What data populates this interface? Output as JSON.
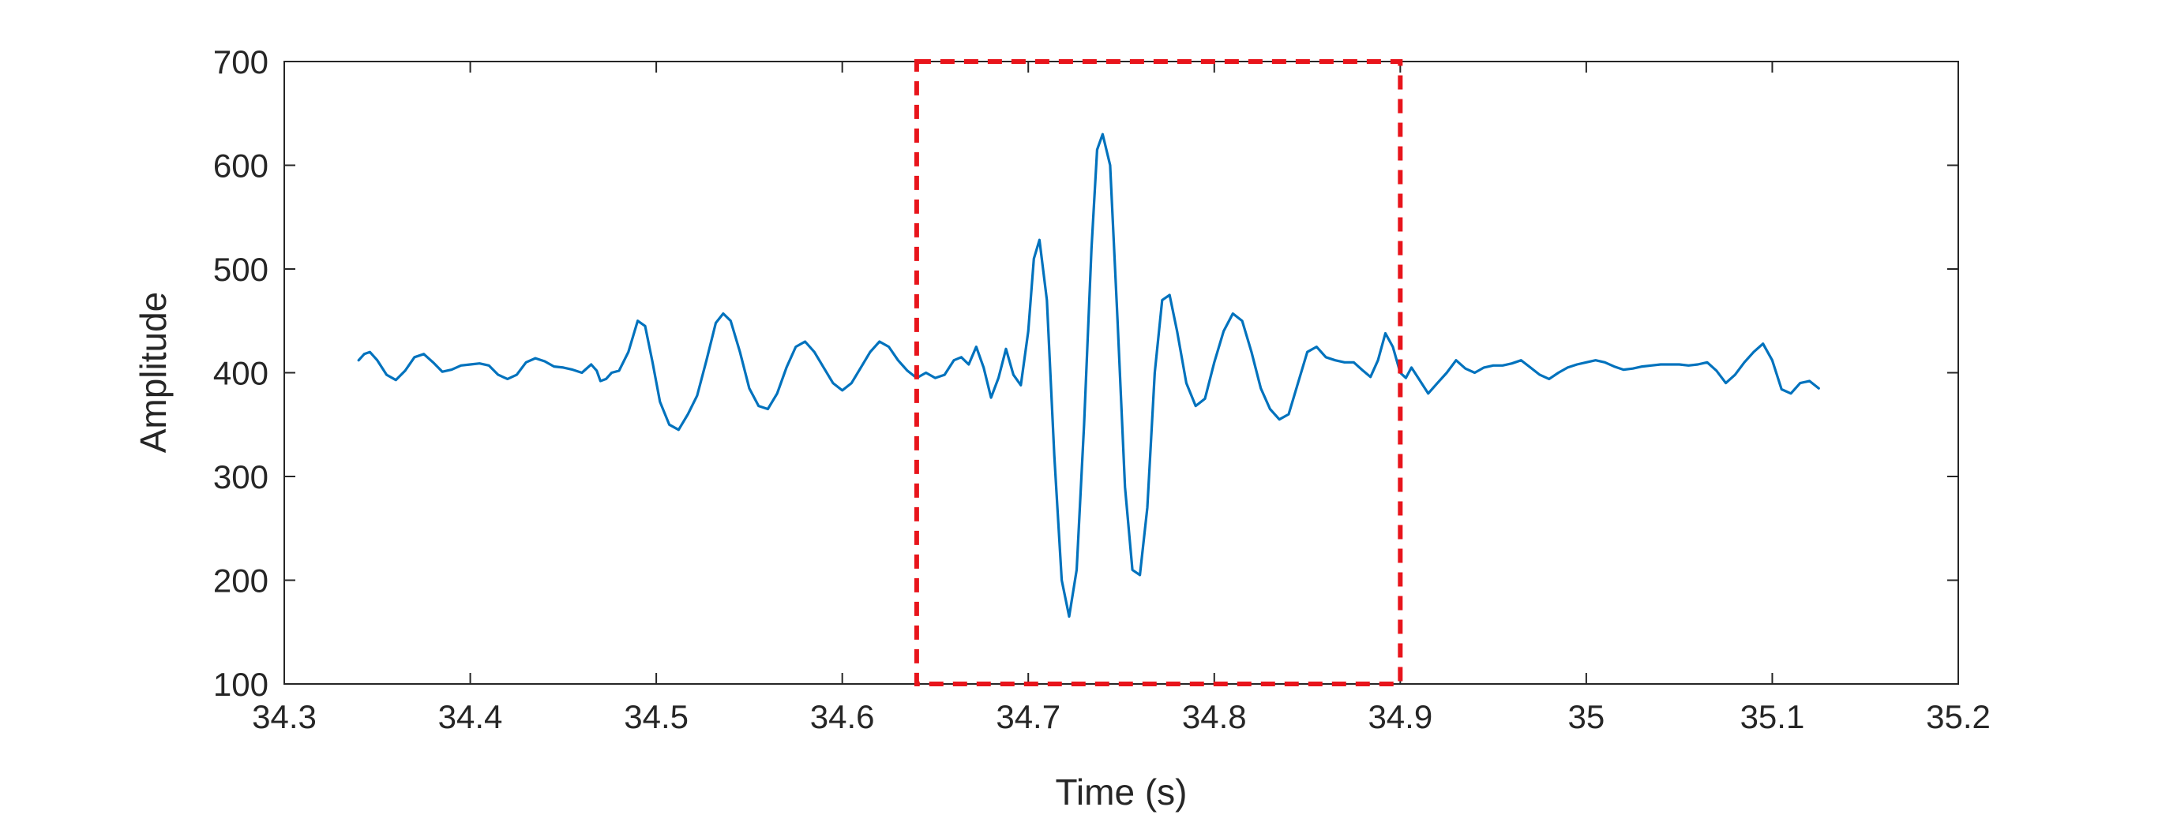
{
  "chart_data": {
    "type": "line",
    "title": "",
    "xlabel": "Time (s)",
    "ylabel": "Amplitude",
    "xlim": [
      34.3,
      35.2
    ],
    "ylim": [
      100,
      700
    ],
    "xticks": [
      34.3,
      34.4,
      34.5,
      34.6,
      34.7,
      34.8,
      34.9,
      35,
      35.1,
      35.2
    ],
    "xtick_labels": [
      "34.3",
      "34.4",
      "34.5",
      "34.6",
      "34.7",
      "34.8",
      "34.9",
      "35",
      "35.1",
      "35.2"
    ],
    "yticks": [
      100,
      200,
      300,
      400,
      500,
      600,
      700
    ],
    "ytick_labels": [
      "100",
      "200",
      "300",
      "400",
      "500",
      "600",
      "700"
    ],
    "grid": false,
    "line_color": "#0072BD",
    "highlight_region": {
      "x": [
        34.64,
        34.9
      ],
      "y": [
        100,
        700
      ],
      "color": "#E8141B",
      "style": "dashed"
    },
    "series": [
      {
        "x": [
          34.34,
          34.343,
          34.346,
          34.35,
          34.355,
          34.36,
          34.365,
          34.37,
          34.375,
          34.38,
          34.385,
          34.39,
          34.395,
          34.4,
          34.405,
          34.41,
          34.415,
          34.42,
          34.425,
          34.43,
          34.435,
          34.44,
          34.445,
          34.45,
          34.455,
          34.46,
          34.465,
          34.468,
          34.47,
          34.473,
          34.476,
          34.48,
          34.485,
          34.49,
          34.494,
          34.498,
          34.502,
          34.507,
          34.512,
          34.517,
          34.522,
          34.527,
          34.532,
          34.536,
          34.54,
          34.545,
          34.55,
          34.555,
          34.56,
          34.565,
          34.57,
          34.575,
          34.58,
          34.585,
          34.59,
          34.595,
          34.6,
          34.605,
          34.61,
          34.615,
          34.62,
          34.625,
          34.63,
          34.635,
          34.64,
          34.645,
          34.65,
          34.655,
          34.66,
          34.664,
          34.668,
          34.672,
          34.676,
          34.68,
          34.684,
          34.688,
          34.692,
          34.696,
          34.7,
          34.703,
          34.706,
          34.71,
          34.714,
          34.718,
          34.722,
          34.726,
          34.73,
          34.734,
          34.737,
          34.74,
          34.744,
          34.748,
          34.752,
          34.756,
          34.76,
          34.764,
          34.768,
          34.772,
          34.776,
          34.78,
          34.785,
          34.79,
          34.795,
          34.8,
          34.805,
          34.81,
          34.815,
          34.82,
          34.825,
          34.83,
          34.835,
          34.84,
          34.845,
          34.85,
          34.855,
          34.86,
          34.865,
          34.87,
          34.875,
          34.88,
          34.884,
          34.888,
          34.892,
          34.896,
          34.9,
          34.903,
          34.906,
          34.91,
          34.915,
          34.92,
          34.925,
          34.93,
          34.935,
          34.94,
          34.945,
          34.95,
          34.955,
          34.96,
          34.965,
          34.97,
          34.975,
          34.98,
          34.985,
          34.99,
          34.995,
          35.0,
          35.005,
          35.01,
          35.015,
          35.02,
          35.025,
          35.03,
          35.035,
          35.04,
          35.045,
          35.05,
          35.055,
          35.06,
          35.065,
          35.07,
          35.075,
          35.08,
          35.085,
          35.09,
          35.095,
          35.1,
          35.105,
          35.11,
          35.115,
          35.12,
          35.125
        ],
        "y": [
          412,
          418,
          420,
          412,
          398,
          393,
          402,
          415,
          418,
          410,
          401,
          403,
          407,
          408,
          409,
          407,
          398,
          394,
          398,
          410,
          414,
          411,
          406,
          405,
          403,
          400,
          408,
          402,
          392,
          394,
          400,
          402,
          420,
          450,
          445,
          410,
          372,
          350,
          345,
          360,
          378,
          412,
          448,
          457,
          450,
          420,
          385,
          368,
          365,
          380,
          405,
          425,
          430,
          420,
          405,
          390,
          383,
          390,
          405,
          420,
          430,
          425,
          412,
          402,
          395,
          400,
          395,
          398,
          412,
          415,
          408,
          425,
          405,
          376,
          395,
          423,
          398,
          388,
          440,
          510,
          528,
          470,
          320,
          200,
          165,
          210,
          350,
          520,
          615,
          630,
          600,
          450,
          290,
          210,
          205,
          270,
          400,
          470,
          475,
          440,
          390,
          368,
          375,
          410,
          440,
          457,
          450,
          420,
          385,
          365,
          355,
          360,
          390,
          420,
          425,
          415,
          412,
          410,
          410,
          402,
          396,
          412,
          438,
          425,
          400,
          395,
          405,
          394,
          380,
          390,
          400,
          412,
          404,
          400,
          405,
          407,
          407,
          409,
          412,
          405,
          398,
          394,
          400,
          405,
          408,
          410,
          412,
          410,
          406,
          403,
          404,
          406,
          407,
          408,
          408,
          408,
          407,
          408,
          410,
          402,
          390,
          398,
          410,
          420,
          428,
          412,
          384,
          380,
          390,
          392,
          385
        ]
      }
    ]
  }
}
